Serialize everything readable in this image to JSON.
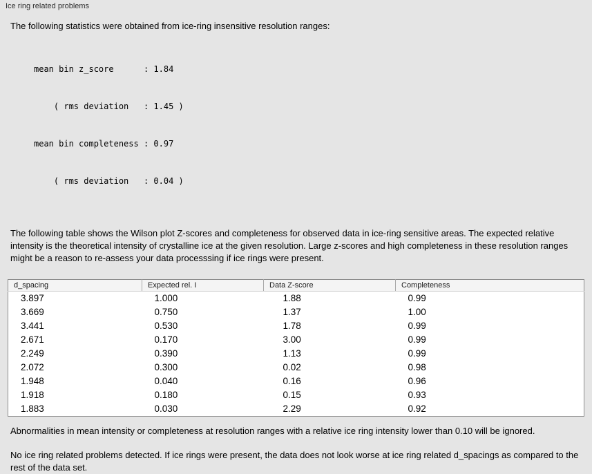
{
  "panel": {
    "title": "Ice ring related problems"
  },
  "intro": "The following statistics were obtained from ice-ring insensitive resolution ranges:",
  "stats": {
    "lines": [
      "mean bin z_score      : 1.84",
      "    ( rms deviation   : 1.45 )",
      "mean bin completeness : 0.97",
      "    ( rms deviation   : 0.04 )"
    ]
  },
  "description": "The following table shows the Wilson plot Z-scores and completeness for observed data in ice-ring sensitive areas. The expected relative intensity is the theoretical intensity of crystalline ice at the given resolution. Large z-scores and high completeness in these resolution ranges might be a reason to re-assess your data processsing if ice rings were present.",
  "table": {
    "headers": [
      "d_spacing",
      "Expected rel. I",
      "Data Z-score",
      "Completeness"
    ],
    "rows": [
      [
        "3.897",
        "1.000",
        "1.88",
        "0.99"
      ],
      [
        "3.669",
        "0.750",
        "1.37",
        "1.00"
      ],
      [
        "3.441",
        "0.530",
        "1.78",
        "0.99"
      ],
      [
        "2.671",
        "0.170",
        "3.00",
        "0.99"
      ],
      [
        "2.249",
        "0.390",
        "1.13",
        "0.99"
      ],
      [
        "2.072",
        "0.300",
        "0.02",
        "0.98"
      ],
      [
        "1.948",
        "0.040",
        "0.16",
        "0.96"
      ],
      [
        "1.918",
        "0.180",
        "0.15",
        "0.93"
      ],
      [
        "1.883",
        "0.030",
        "2.29",
        "0.92"
      ]
    ]
  },
  "note_ignore": "Abnormalities in mean intensity or completeness at resolution ranges with a relative ice ring intensity lower than 0.10 will be ignored.",
  "conclusion": "No ice ring related problems detected. If ice rings were present, the data does not look worse at ice ring related d_spacings as compared to the rest of the data set."
}
